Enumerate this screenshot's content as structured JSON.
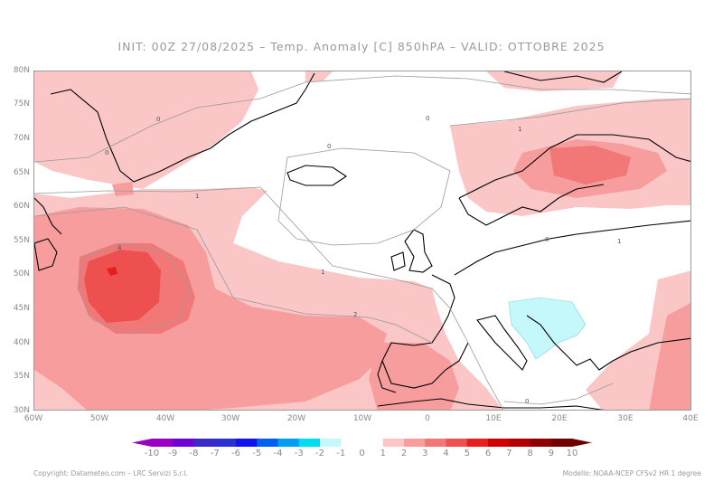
{
  "header": {
    "title": "INIT: 00Z 27/08/2025 – Temp. Anomaly [C] 850hPA – VALID: OTTOBRE 2025"
  },
  "map": {
    "region": "North Atlantic and Europe",
    "lat_labels": [
      "80N",
      "75N",
      "70N",
      "65N",
      "60N",
      "55N",
      "50N",
      "45N",
      "40N",
      "35N",
      "30N"
    ],
    "lon_labels": [
      "60W",
      "50W",
      "40W",
      "30W",
      "20W",
      "10W",
      "0",
      "10E",
      "20E",
      "30E",
      "40E"
    ],
    "contour_labels": [
      "0",
      "0",
      "0",
      "0",
      "1",
      "1",
      "1",
      "1",
      "2",
      "4",
      "0",
      "0"
    ],
    "colors": {
      "anom_1_2": "#fbc6c6",
      "anom_2_3": "#f79d9d",
      "anom_3_4": "#f27878",
      "anom_4_5": "#ee5050",
      "anom_5_6": "#e61e1e",
      "anom_neg_1_2": "#c4f8fa",
      "coast": "#000000",
      "contour": "#9a9a9a"
    }
  },
  "colorbar": {
    "labels": [
      "-10",
      "-9",
      "-8",
      "-7",
      "-6",
      "-5",
      "-4",
      "-3",
      "-2",
      "-1",
      "0",
      "1",
      "2",
      "3",
      "4",
      "5",
      "6",
      "7",
      "8",
      "9",
      "10"
    ],
    "colors": [
      "#9b00c2",
      "#6f00d6",
      "#3a2bc7",
      "#2d2fd1",
      "#1212f2",
      "#0060f0",
      "#00a0f0",
      "#00dcf0",
      "#c4f8fa",
      "#ffffff",
      "#ffffff",
      "#fbc6c6",
      "#f79d9d",
      "#f27878",
      "#ee5050",
      "#e61e1e",
      "#d10000",
      "#b30000",
      "#8f0000",
      "#700000"
    ]
  },
  "footer": {
    "left": "Copyright: Datameteo.com – LRC Servizi S.r.l.",
    "right": "Modello: NOAA-NCEP CFSv2 HR 1 degree"
  }
}
